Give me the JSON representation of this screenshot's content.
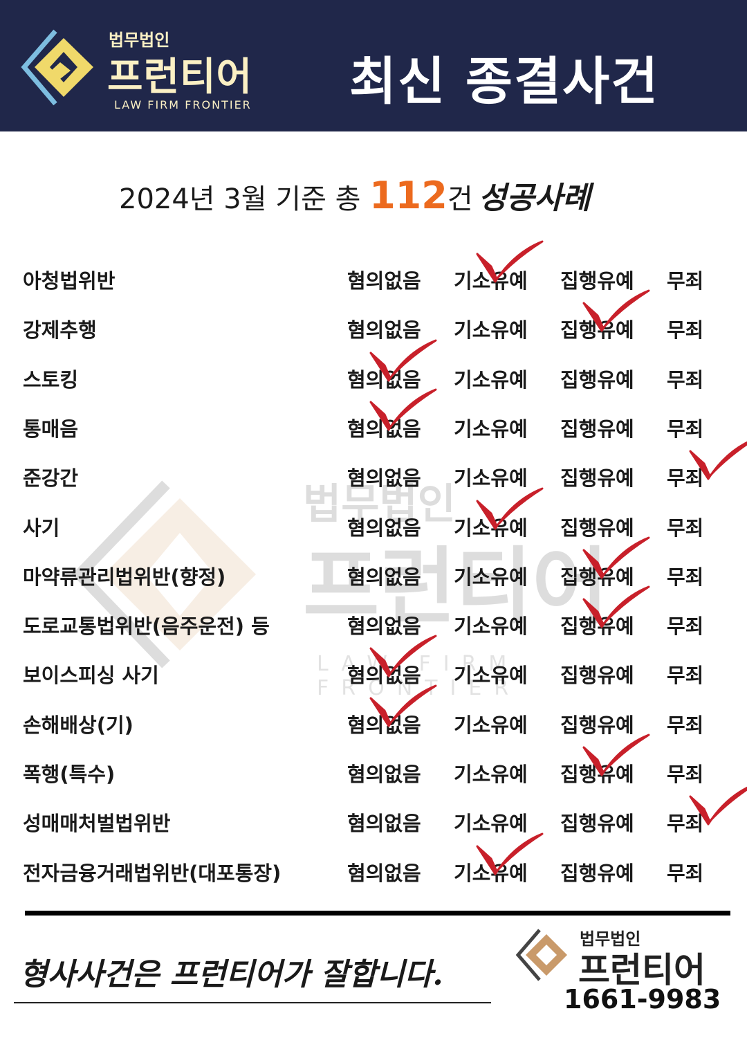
{
  "header": {
    "logo_small": "법무법인",
    "logo_big": "프런티어",
    "logo_en": "LAW FIRM FRONTIER",
    "title": "최신 종결사건"
  },
  "subtitle": {
    "prefix": "2024년 3월 기준 총 ",
    "count": "112",
    "suffix": "건",
    "script": "성공사례"
  },
  "options": [
    "혐의없음",
    "기소유예",
    "집행유예",
    "무죄"
  ],
  "cases": [
    {
      "category": "아청법위반",
      "result": "기소유예"
    },
    {
      "category": "강제추행",
      "result": "집행유예"
    },
    {
      "category": "스토킹",
      "result": "혐의없음"
    },
    {
      "category": "통매음",
      "result": "혐의없음"
    },
    {
      "category": "준강간",
      "result": "무죄"
    },
    {
      "category": "사기",
      "result": "기소유예"
    },
    {
      "category": "마약류관리법위반(향정)",
      "result": "집행유예"
    },
    {
      "category": "도로교통법위반(음주운전) 등",
      "result": "집행유예"
    },
    {
      "category": "보이스피싱 사기",
      "result": "혐의없음"
    },
    {
      "category": "손해배상(기)",
      "result": "혐의없음"
    },
    {
      "category": "폭행(특수)",
      "result": "집행유예"
    },
    {
      "category": "성매매처벌법위반",
      "result": "무죄"
    },
    {
      "category": "전자금융거래법위반(대포통장)",
      "result": "기소유예"
    }
  ],
  "watermark": {
    "small": "법무법인",
    "big": "프런티어",
    "en": "LAW FIRM FRONTIER"
  },
  "footer": {
    "slogan": "형사사건은 프런티어가 잘합니다.",
    "logo_small": "법무법인",
    "logo_big": "프런티어",
    "phone": "1661-9983"
  },
  "colors": {
    "navy": "#20274a",
    "accent": "#ec6a1e",
    "check": "#c8202a",
    "logo_yellow": "#f0d96a",
    "logo_blue": "#7dbde0"
  }
}
